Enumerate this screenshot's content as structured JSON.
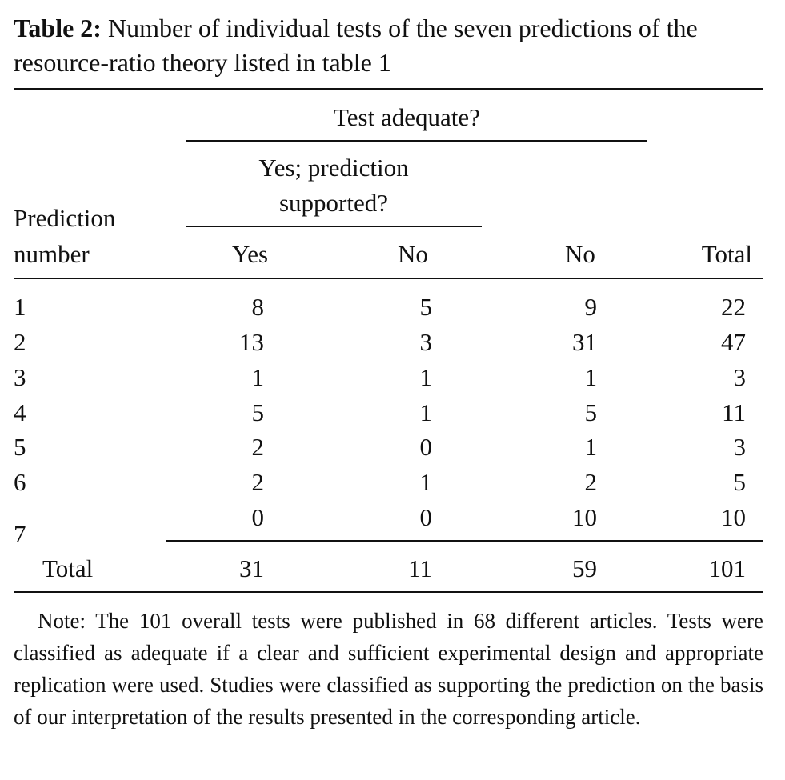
{
  "caption": {
    "label": "Table 2:",
    "text": "Number of individual tests of the seven predictions of the resource-ratio theory listed in table 1"
  },
  "header": {
    "test_adequate": "Test adequate?",
    "yes_prediction_line1": "Yes; prediction",
    "yes_prediction_line2": "supported?",
    "prediction_line1": "Prediction",
    "prediction_line2": "number",
    "col_yes": "Yes",
    "col_no": "No",
    "col_no_adequate": "No",
    "col_total": "Total"
  },
  "rows": [
    {
      "num": "1",
      "yes": "8",
      "no": "5",
      "not_adequate": "9",
      "total": "22"
    },
    {
      "num": "2",
      "yes": "13",
      "no": "3",
      "not_adequate": "31",
      "total": "47"
    },
    {
      "num": "3",
      "yes": "1",
      "no": "1",
      "not_adequate": "1",
      "total": "3"
    },
    {
      "num": "4",
      "yes": "5",
      "no": "1",
      "not_adequate": "5",
      "total": "11"
    },
    {
      "num": "5",
      "yes": "2",
      "no": "0",
      "not_adequate": "1",
      "total": "3"
    },
    {
      "num": "6",
      "yes": "2",
      "no": "1",
      "not_adequate": "2",
      "total": "5"
    },
    {
      "num": "7",
      "yes": "0",
      "no": "0",
      "not_adequate": "10",
      "total": "10"
    }
  ],
  "total_row": {
    "label": "Total",
    "yes": "31",
    "no": "11",
    "not_adequate": "59",
    "total": "101"
  },
  "note": "Note: The 101 overall tests were published in 68 different articles. Tests were classified as adequate if a clear and sufficient experimental design and appropriate replication were used. Studies were classified as supporting the prediction on the basis of our interpretation of the results presented in the corresponding article."
}
